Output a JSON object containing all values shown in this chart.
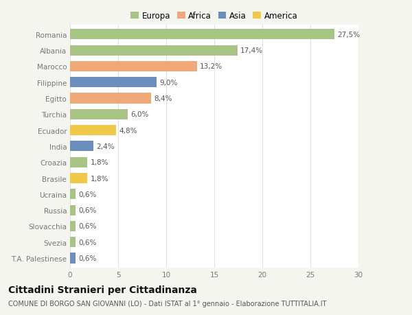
{
  "categories": [
    "Romania",
    "Albania",
    "Marocco",
    "Filippine",
    "Egitto",
    "Turchia",
    "Ecuador",
    "India",
    "Croazia",
    "Brasile",
    "Ucraina",
    "Russia",
    "Slovacchia",
    "Svezia",
    "T.A. Palestinese"
  ],
  "values": [
    27.5,
    17.4,
    13.2,
    9.0,
    8.4,
    6.0,
    4.8,
    2.4,
    1.8,
    1.8,
    0.6,
    0.6,
    0.6,
    0.6,
    0.6
  ],
  "labels": [
    "27,5%",
    "17,4%",
    "13,2%",
    "9,0%",
    "8,4%",
    "6,0%",
    "4,8%",
    "2,4%",
    "1,8%",
    "1,8%",
    "0,6%",
    "0,6%",
    "0,6%",
    "0,6%",
    "0,6%"
  ],
  "colors": [
    "#a8c484",
    "#a8c484",
    "#f0a878",
    "#6b8ebc",
    "#f0a878",
    "#a8c484",
    "#f0c84a",
    "#6b8ebc",
    "#a8c484",
    "#f0c84a",
    "#a8c484",
    "#a8c484",
    "#a8c484",
    "#a8c484",
    "#6b8ebc"
  ],
  "legend_labels": [
    "Europa",
    "Africa",
    "Asia",
    "America"
  ],
  "legend_colors": [
    "#a8c484",
    "#f0a878",
    "#6b8ebc",
    "#f0c84a"
  ],
  "title": "Cittadini Stranieri per Cittadinanza",
  "subtitle": "COMUNE DI BORGO SAN GIOVANNI (LO) - Dati ISTAT al 1° gennaio - Elaborazione TUTTITALIA.IT",
  "xlim": [
    0,
    30
  ],
  "xticks": [
    0,
    5,
    10,
    15,
    20,
    25,
    30
  ],
  "background_color": "#f5f5f0",
  "bar_background": "#ffffff",
  "grid_color": "#e0e0e0",
  "label_fontsize": 7.5,
  "tick_fontsize": 7.5,
  "legend_fontsize": 8.5,
  "title_fontsize": 10,
  "subtitle_fontsize": 7,
  "bar_height": 0.65
}
